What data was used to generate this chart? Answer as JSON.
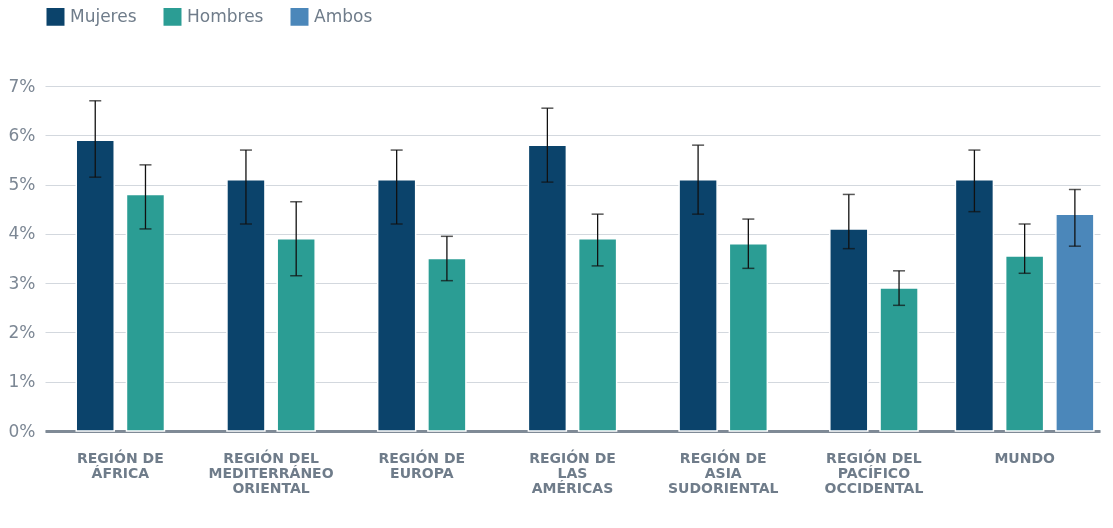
{
  "chart_data": {
    "type": "bar",
    "categories": [
      "REGIÓN DE ÁFRICA",
      "REGIÓN DEL MEDITERRÁNEO ORIENTAL",
      "REGIÓN DE EUROPA",
      "REGIÓN DE LAS AMÉRICAS",
      "REGIÓN DE ASIA SUDORIENTAL",
      "REGIÓN DEL PACÍFICO OCCIDENTAL",
      "MUNDO"
    ],
    "series": [
      {
        "name": "Mujeres",
        "color": "#0b436b",
        "values": [
          5.9,
          5.1,
          5.1,
          5.8,
          5.1,
          4.1,
          5.1
        ],
        "errors": [
          [
            5.15,
            6.7
          ],
          [
            4.2,
            5.7
          ],
          [
            4.2,
            5.7
          ],
          [
            5.05,
            6.55
          ],
          [
            4.4,
            5.8
          ],
          [
            3.7,
            4.8
          ],
          [
            4.45,
            5.7
          ]
        ]
      },
      {
        "name": "Hombres",
        "color": "#2b9d94",
        "values": [
          4.8,
          3.9,
          3.5,
          3.9,
          3.8,
          2.9,
          3.55
        ],
        "errors": [
          [
            4.1,
            5.4
          ],
          [
            3.15,
            4.65
          ],
          [
            3.05,
            3.95
          ],
          [
            3.35,
            4.4
          ],
          [
            3.3,
            4.3
          ],
          [
            2.55,
            3.25
          ],
          [
            3.2,
            4.2
          ]
        ]
      },
      {
        "name": "Ambos",
        "color": "#4b87ba",
        "values": [
          null,
          null,
          null,
          null,
          null,
          null,
          4.4
        ],
        "errors": [
          null,
          null,
          null,
          null,
          null,
          null,
          [
            3.75,
            4.9
          ]
        ]
      }
    ],
    "ylim": [
      0,
      7
    ],
    "yticks": [
      {
        "value": 0,
        "label": "0%"
      },
      {
        "value": 1,
        "label": "1%"
      },
      {
        "value": 2,
        "label": "2%"
      },
      {
        "value": 3,
        "label": "3%"
      },
      {
        "value": 4,
        "label": "4%"
      },
      {
        "value": 5,
        "label": "5%"
      },
      {
        "value": 6,
        "label": "6%"
      },
      {
        "value": 7,
        "label": "7%"
      }
    ],
    "grid": "y",
    "legend": "top left"
  }
}
